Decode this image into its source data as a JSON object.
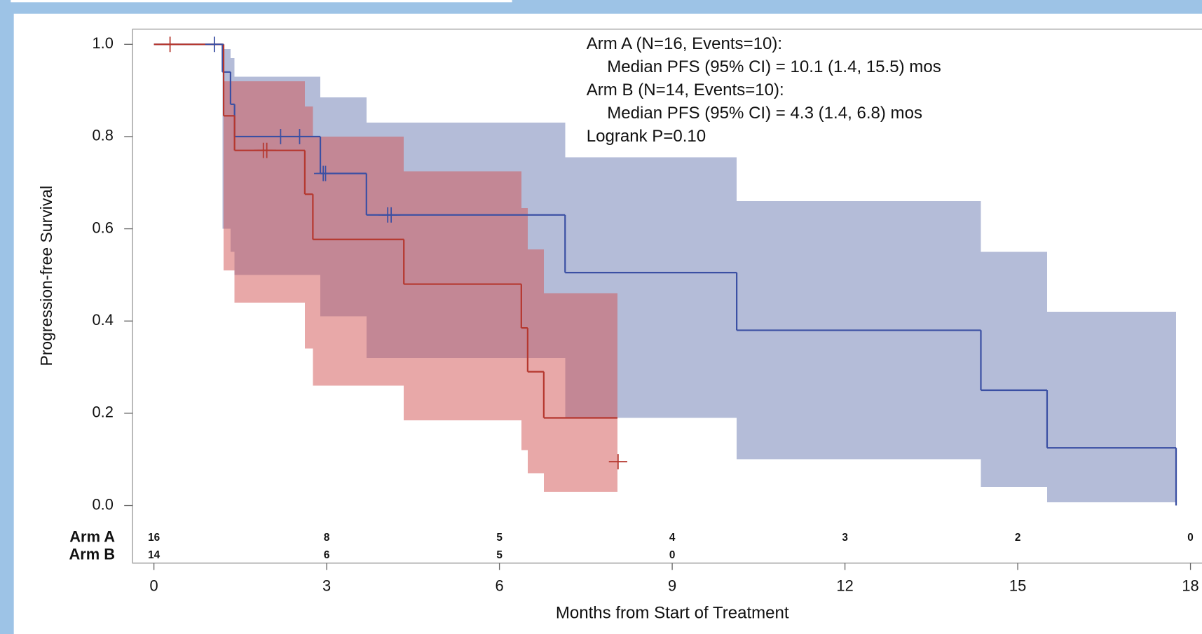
{
  "chart_data": {
    "type": "kaplan-meier",
    "xlabel": "Months from Start of Treatment",
    "ylabel": "Progression-free Survival",
    "xlim": [
      -0.37,
      18.2
    ],
    "ylim": [
      -0.125,
      1.033
    ],
    "xticks": [
      0,
      3,
      6,
      9,
      12,
      15,
      18
    ],
    "yticks": [
      {
        "value": 0,
        "label": "0.0"
      },
      0.2,
      0.4,
      0.6,
      0.8,
      {
        "value": 1,
        "label": "1.0"
      }
    ],
    "annotations": [
      "Arm A (N=16, Events=10):",
      "Median PFS (95% CI) = 10.1 (1.4, 15.5) mos",
      "Arm B (N=14, Events=10):",
      "Median PFS (95% CI) = 4.3 (1.4, 6.8) mos",
      "Logrank P=0.10"
    ],
    "at_risk_x": [
      0,
      3,
      6,
      9,
      12,
      15,
      18
    ],
    "series": [
      {
        "name": "Arm A",
        "color": "#3a4fa3",
        "band_color": "#6979b1",
        "x": [
          0,
          1.19,
          1.33,
          1.4,
          2.89,
          3.69,
          7.14,
          10.12,
          14.36,
          15.51,
          17.75
        ],
        "values": [
          1,
          0.94,
          0.87,
          0.8,
          0.72,
          0.63,
          0.505,
          0.38,
          0.25,
          0.125,
          0
        ],
        "ci_lower": [
          1,
          0.6,
          0.55,
          0.5,
          0.41,
          0.32,
          0.19,
          0.1,
          0.04,
          0.007,
          0
        ],
        "ci_upper": [
          1,
          0.99,
          0.97,
          0.93,
          0.885,
          0.83,
          0.755,
          0.66,
          0.55,
          0.42,
          0
        ],
        "end_x": 17.75,
        "censor_x": [
          1.05,
          2.2,
          2.53,
          2.94,
          2.98,
          4.06,
          4.12
        ],
        "censor_values": [
          1,
          0.8,
          0.8,
          0.72,
          0.72,
          0.63,
          0.63
        ],
        "at_risk": [
          16,
          8,
          5,
          4,
          3,
          2,
          0
        ]
      },
      {
        "name": "Arm B",
        "color": "#b5372e",
        "band_color": "#d15151",
        "x": [
          0,
          1.21,
          1.4,
          2.62,
          2.76,
          4.34,
          6.38,
          6.49,
          6.77
        ],
        "values": [
          1,
          0.845,
          0.77,
          0.675,
          0.577,
          0.48,
          0.385,
          0.29,
          0.19
        ],
        "ci_lower": [
          1,
          0.51,
          0.44,
          0.34,
          0.26,
          0.185,
          0.12,
          0.07,
          0.03
        ],
        "ci_upper": [
          1,
          0.92,
          0.92,
          0.865,
          0.8,
          0.725,
          0.645,
          0.555,
          0.46
        ],
        "end_x": 8.05,
        "censor_x": [
          0.28,
          1.9,
          1.96,
          8.06
        ],
        "censor_values": [
          1,
          0.77,
          0.77,
          0.095
        ],
        "at_risk": [
          14,
          6,
          5,
          0,
          null,
          null,
          null
        ]
      }
    ]
  }
}
